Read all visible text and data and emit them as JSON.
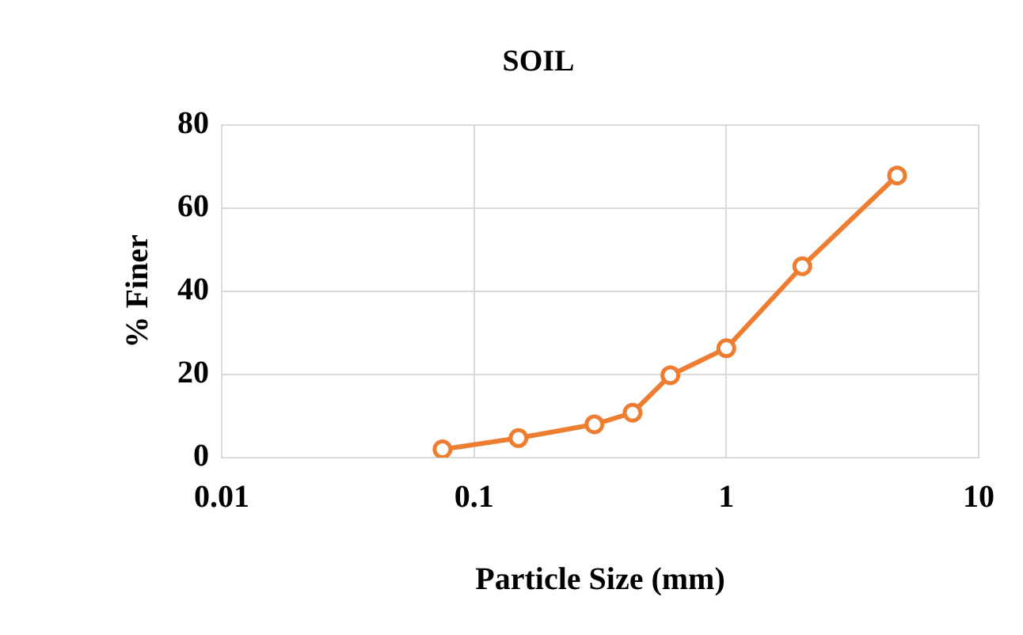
{
  "chart_data": {
    "type": "line",
    "title": "SOIL",
    "xlabel": "Particle Size (mm)",
    "ylabel": "% Finer",
    "log": "x",
    "x": [
      0.075,
      0.15,
      0.3,
      0.425,
      0.6,
      1,
      2,
      4.75
    ],
    "series": [
      {
        "color": "#ed7d31",
        "values": [
          2,
          4.7,
          8,
          10.8,
          19.8,
          26.3,
          46,
          67.8
        ]
      }
    ],
    "xlim": [
      0.01,
      10
    ],
    "xticks": [
      0.01,
      0.1,
      1,
      10
    ],
    "ylim": [
      0,
      80
    ],
    "yticks": [
      0,
      20,
      40,
      60,
      80
    ],
    "grid": true,
    "marker": "circle",
    "line_style": "solid",
    "legend": false
  }
}
